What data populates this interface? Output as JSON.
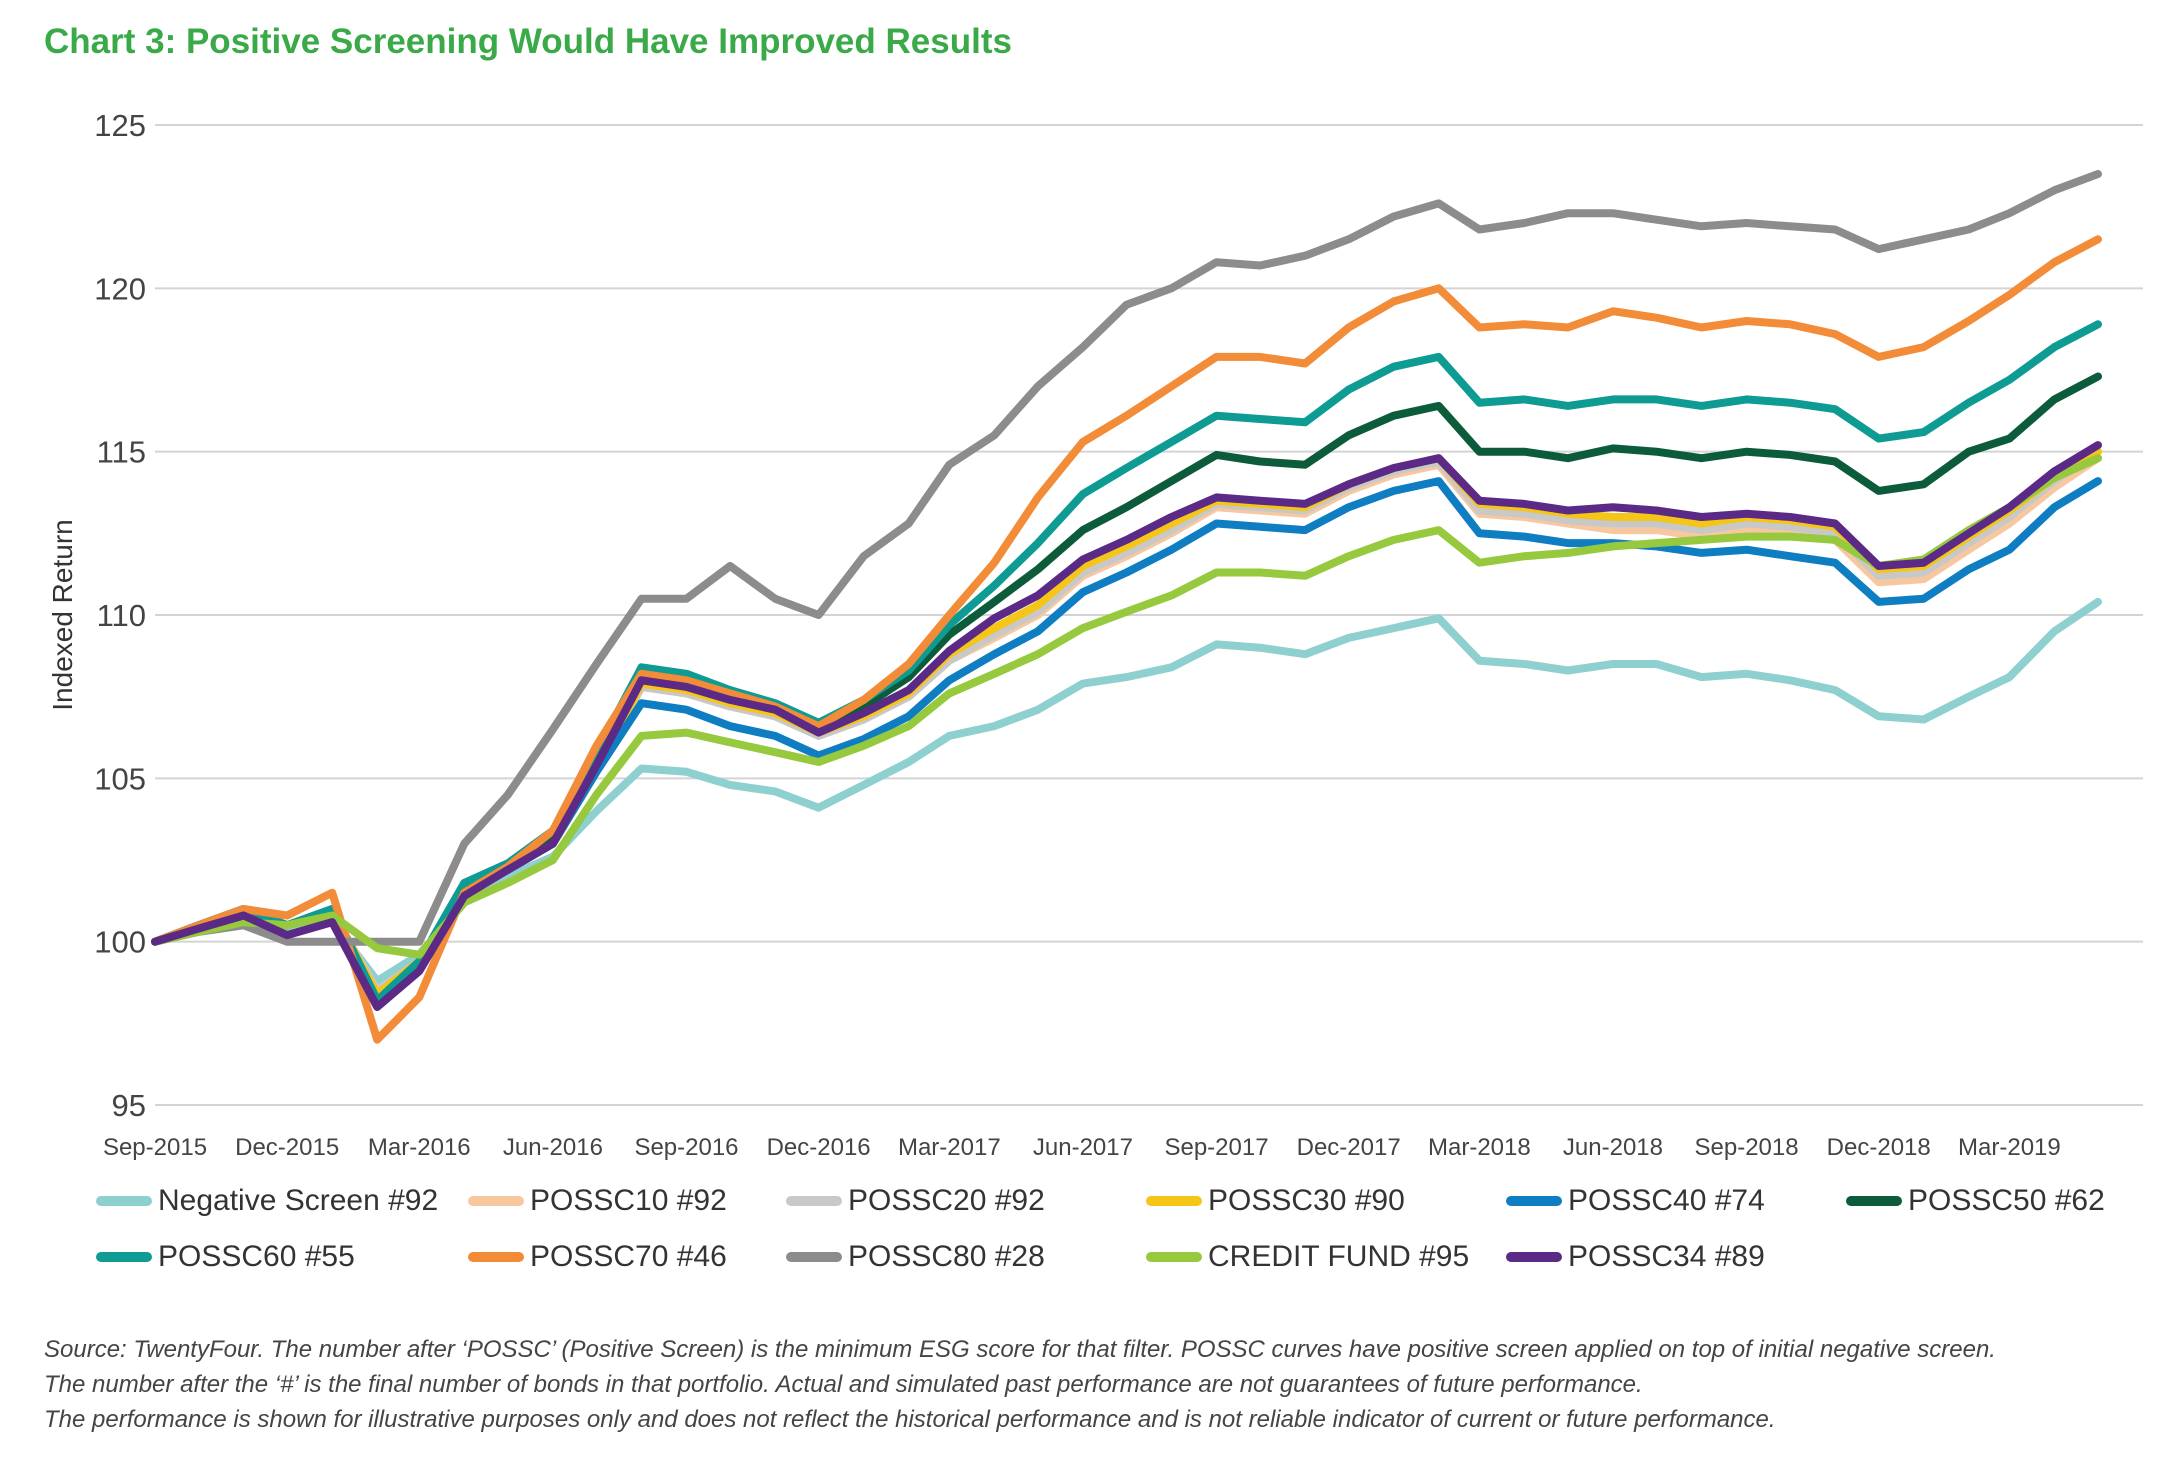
{
  "title": "Chart 3: Positive Screening Would Have Improved Results",
  "source_lines": [
    "Source: TwentyFour. The number after ‘POSSC’ (Positive Screen) is the minimum ESG score for that filter. POSSC curves have positive screen applied on top of initial negative screen.",
    "The number after the ‘#’ is the final number of bonds in that portfolio. Actual and simulated past performance are not guarantees of future performance.",
    "The performance is shown for illustrative purposes only and does not reflect the historical performance and is not reliable indicator of current or future performance."
  ],
  "chart_data": {
    "type": "line",
    "ylabel": "Indexed Return",
    "xlabel": "",
    "ylim": [
      95,
      125
    ],
    "yticks": [
      95,
      100,
      105,
      110,
      115,
      120,
      125
    ],
    "xlim": [
      "2015-09-01",
      "2019-06-01"
    ],
    "xtick_labels": [
      "Sep-2015",
      "Dec-2015",
      "Mar-2016",
      "Jun-2016",
      "Sep-2016",
      "Dec-2016",
      "Mar-2017",
      "Jun-2017",
      "Sep-2017",
      "Dec-2017",
      "Mar-2018",
      "Jun-2018",
      "Sep-2018",
      "Dec-2018",
      "Mar-2019"
    ],
    "grid": "horizontal",
    "legend_position": "bottom",
    "x": [
      "2015-09",
      "2015-10",
      "2015-11",
      "2015-12",
      "2016-01",
      "2016-02",
      "2016-03",
      "2016-04",
      "2016-05",
      "2016-06",
      "2016-07",
      "2016-08",
      "2016-09",
      "2016-10",
      "2016-11",
      "2016-12",
      "2017-01",
      "2017-02",
      "2017-03",
      "2017-04",
      "2017-05",
      "2017-06",
      "2017-07",
      "2017-08",
      "2017-09",
      "2017-10",
      "2017-11",
      "2017-12",
      "2018-01",
      "2018-02",
      "2018-03",
      "2018-04",
      "2018-05",
      "2018-06",
      "2018-07",
      "2018-08",
      "2018-09",
      "2018-10",
      "2018-11",
      "2018-12",
      "2019-01",
      "2019-02",
      "2019-03",
      "2019-04",
      "2019-05"
    ],
    "series": [
      {
        "name": "Negative Screen #92",
        "color": "#8ecfcf",
        "values": [
          100,
          100.5,
          100.8,
          100.3,
          100.6,
          98.8,
          99.6,
          101.2,
          102,
          102.6,
          104,
          105.3,
          105.2,
          104.8,
          104.6,
          104.1,
          104.8,
          105.5,
          106.3,
          106.6,
          107.1,
          107.9,
          108.1,
          108.4,
          109.1,
          109,
          108.8,
          109.3,
          109.6,
          109.9,
          108.6,
          108.5,
          108.3,
          108.5,
          108.5,
          108.1,
          108.2,
          108,
          107.7,
          106.9,
          106.8,
          107.5,
          108.1,
          109.5,
          110.4
        ]
      },
      {
        "name": "POSSC10 #92",
        "color": "#f7c8a0",
        "values": [
          100,
          100.5,
          101,
          100.5,
          100.9,
          98.5,
          99.4,
          101.5,
          102.2,
          103,
          105.2,
          107.8,
          107.6,
          107.2,
          106.9,
          106.3,
          106.8,
          107.5,
          108.6,
          109.3,
          110,
          111.2,
          111.8,
          112.5,
          113.3,
          113.2,
          113.1,
          113.8,
          114.3,
          114.6,
          113.1,
          113,
          112.8,
          112.6,
          112.6,
          112.4,
          112.6,
          112.5,
          112.3,
          111,
          111.1,
          112,
          112.8,
          113.9,
          114.8
        ]
      },
      {
        "name": "POSSC20 #92",
        "color": "#c8c8c8",
        "values": [
          100,
          100.5,
          101,
          100.5,
          100.9,
          98.5,
          99.4,
          101.5,
          102.2,
          103,
          105.2,
          107.8,
          107.6,
          107.2,
          106.9,
          106.3,
          106.8,
          107.5,
          108.6,
          109.4,
          110.1,
          111.3,
          111.9,
          112.6,
          113.4,
          113.3,
          113.2,
          113.9,
          114.4,
          114.7,
          113.2,
          113.1,
          112.9,
          112.8,
          112.8,
          112.6,
          112.8,
          112.7,
          112.5,
          111.2,
          111.3,
          112.2,
          113,
          114.1,
          115
        ]
      },
      {
        "name": "POSSC30 #90",
        "color": "#f5c518",
        "values": [
          100,
          100.5,
          101,
          100.5,
          100.9,
          98.4,
          99.4,
          101.5,
          102.2,
          103,
          105.2,
          107.9,
          107.7,
          107.3,
          107,
          106.4,
          106.9,
          107.6,
          108.8,
          109.6,
          110.3,
          111.5,
          112.1,
          112.8,
          113.5,
          113.4,
          113.3,
          114,
          114.5,
          114.8,
          113.4,
          113.3,
          113.1,
          113,
          113,
          112.8,
          113,
          112.9,
          112.7,
          111.4,
          111.5,
          112.4,
          113.2,
          114.2,
          115
        ]
      },
      {
        "name": "POSSC40 #74",
        "color": "#0e7dc2",
        "values": [
          100,
          100.5,
          101,
          100.5,
          100.9,
          98.2,
          99.2,
          101.5,
          102.2,
          103,
          105.2,
          107.3,
          107.1,
          106.6,
          106.3,
          105.7,
          106.2,
          106.9,
          108,
          108.8,
          109.5,
          110.7,
          111.3,
          112,
          112.8,
          112.7,
          112.6,
          113.3,
          113.8,
          114.1,
          112.5,
          112.4,
          112.2,
          112.2,
          112.1,
          111.9,
          112,
          111.8,
          111.6,
          110.4,
          110.5,
          111.4,
          112,
          113.3,
          114.1
        ]
      },
      {
        "name": "POSSC50 #62",
        "color": "#0c5c3c",
        "values": [
          100,
          100.5,
          101,
          100.5,
          101,
          98.2,
          99.3,
          101.7,
          102.3,
          103.2,
          105.5,
          108.2,
          108,
          107.5,
          107.2,
          106.6,
          107.2,
          108.1,
          109.4,
          110.4,
          111.4,
          112.6,
          113.3,
          114.1,
          114.9,
          114.7,
          114.6,
          115.5,
          116.1,
          116.4,
          115,
          115,
          114.8,
          115.1,
          115,
          114.8,
          115,
          114.9,
          114.7,
          113.8,
          114,
          115,
          115.4,
          116.6,
          117.3
        ]
      },
      {
        "name": "POSSC60 #55",
        "color": "#0d9b93",
        "values": [
          100,
          100.5,
          101,
          100.5,
          101,
          98.2,
          99.4,
          101.8,
          102.4,
          103.4,
          105.8,
          108.4,
          108.2,
          107.7,
          107.3,
          106.7,
          107.4,
          108.3,
          109.7,
          110.9,
          112.2,
          113.7,
          114.5,
          115.3,
          116.1,
          116,
          115.9,
          116.9,
          117.6,
          117.9,
          116.5,
          116.6,
          116.4,
          116.6,
          116.6,
          116.4,
          116.6,
          116.5,
          116.3,
          115.4,
          115.6,
          116.5,
          117.2,
          118.2,
          118.9
        ]
      },
      {
        "name": "POSSC70 #46",
        "color": "#f28c38",
        "values": [
          100,
          100.5,
          101,
          100.8,
          101.5,
          97,
          98.3,
          101.5,
          102.3,
          103.4,
          106,
          108.2,
          108,
          107.6,
          107.2,
          106.6,
          107.4,
          108.5,
          110,
          111.6,
          113.6,
          115.3,
          116.1,
          117,
          117.9,
          117.9,
          117.7,
          118.8,
          119.6,
          120,
          118.8,
          118.9,
          118.8,
          119.3,
          119.1,
          118.8,
          119,
          118.9,
          118.6,
          117.9,
          118.2,
          119,
          119.8,
          120.8,
          121.5
        ]
      },
      {
        "name": "POSSC80 #28",
        "color": "#8c8c8c",
        "values": [
          100,
          100.3,
          100.5,
          100,
          100,
          100,
          100,
          103,
          104.5,
          106.5,
          108.5,
          110.5,
          110.5,
          111.5,
          110.5,
          110,
          111.8,
          112.8,
          114.6,
          115.5,
          117,
          118.2,
          119.5,
          120,
          120.8,
          120.7,
          121,
          121.5,
          122.2,
          122.6,
          121.8,
          122,
          122.3,
          122.3,
          122.1,
          121.9,
          122,
          121.9,
          121.8,
          121.2,
          121.5,
          121.8,
          122.3,
          123,
          123.5
        ]
      },
      {
        "name": "CREDIT FUND #95",
        "color": "#96c93d",
        "values": [
          100,
          100.3,
          100.6,
          100.5,
          100.8,
          99.8,
          99.6,
          101.2,
          101.8,
          102.5,
          104.5,
          106.3,
          106.4,
          106.1,
          105.8,
          105.5,
          106,
          106.6,
          107.6,
          108.2,
          108.8,
          109.6,
          110.1,
          110.6,
          111.3,
          111.3,
          111.2,
          111.8,
          112.3,
          112.6,
          111.6,
          111.8,
          111.9,
          112.1,
          112.2,
          112.3,
          112.4,
          112.4,
          112.3,
          111.5,
          111.7,
          112.6,
          113.3,
          114.2,
          114.8
        ]
      },
      {
        "name": "POSSC34 #89",
        "color": "#5b2a86",
        "values": [
          100,
          100.4,
          100.8,
          100.2,
          100.6,
          98,
          99.1,
          101.4,
          102.2,
          103,
          105.4,
          108,
          107.8,
          107.4,
          107.1,
          106.4,
          107,
          107.7,
          108.9,
          109.9,
          110.6,
          111.7,
          112.3,
          113,
          113.6,
          113.5,
          113.4,
          114,
          114.5,
          114.8,
          113.5,
          113.4,
          113.2,
          113.3,
          113.2,
          113,
          113.1,
          113,
          112.8,
          111.5,
          111.6,
          112.5,
          113.3,
          114.4,
          115.2
        ]
      }
    ]
  }
}
